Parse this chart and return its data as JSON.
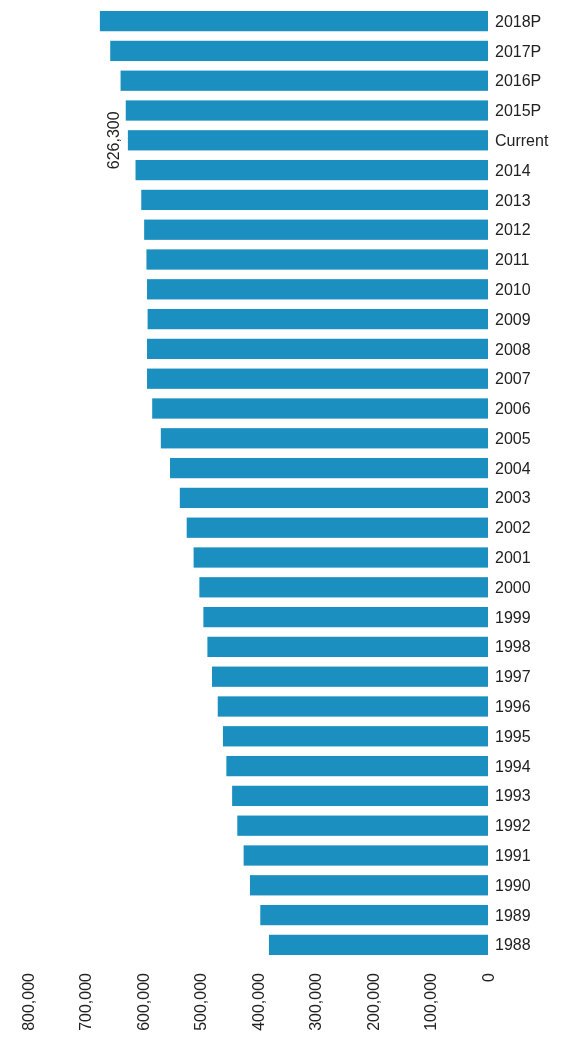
{
  "chart_data": {
    "type": "bar",
    "orientation": "horizontal",
    "categories": [
      "2018P",
      "2017P",
      "2016P",
      "2015P",
      "Current",
      "2014",
      "2013",
      "2012",
      "2011",
      "2010",
      "2009",
      "2008",
      "2007",
      "2006",
      "2005",
      "2004",
      "2003",
      "2002",
      "2001",
      "2000",
      "1999",
      "1998",
      "1997",
      "1996",
      "1995",
      "1994",
      "1993",
      "1992",
      "1991",
      "1990",
      "1989",
      "1988"
    ],
    "values": [
      675000,
      657000,
      639000,
      630000,
      626300,
      613000,
      603000,
      598000,
      594000,
      593000,
      592000,
      593000,
      593000,
      584000,
      569000,
      553000,
      536000,
      524000,
      512000,
      502000,
      495000,
      488000,
      480000,
      470000,
      461000,
      455000,
      445000,
      436000,
      425000,
      414000,
      396000,
      381000
    ],
    "value_labels": [
      null,
      null,
      null,
      null,
      "626,300",
      null,
      null,
      null,
      null,
      null,
      null,
      null,
      null,
      null,
      null,
      null,
      null,
      null,
      null,
      null,
      null,
      null,
      null,
      null,
      null,
      null,
      null,
      null,
      null,
      null,
      null,
      null
    ],
    "color": "#1a8fc0",
    "xlim": [
      800000,
      0
    ],
    "xticks": [
      {
        "value": 800000,
        "label": "800,000"
      },
      {
        "value": 700000,
        "label": "700,000"
      },
      {
        "value": 600000,
        "label": "600,000"
      },
      {
        "value": 500000,
        "label": "500,000"
      },
      {
        "value": 400000,
        "label": "400,000"
      },
      {
        "value": 300000,
        "label": "300,000"
      },
      {
        "value": 200000,
        "label": "200,000"
      },
      {
        "value": 100000,
        "label": "100,000"
      },
      0
    ],
    "grid": false
  }
}
